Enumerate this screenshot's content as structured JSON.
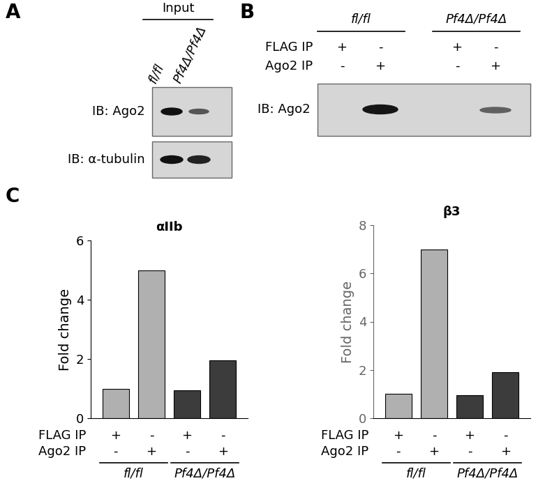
{
  "panels": {
    "A": {
      "label": "A",
      "header": "Input",
      "lanes": [
        "fl/fl",
        "Pf4Δ/Pf4Δ"
      ],
      "blots": [
        "IB: Ago2",
        "IB: α-tubulin"
      ]
    },
    "B": {
      "label": "B",
      "groups": [
        "fl/fl",
        "Pf4Δ/Pf4Δ"
      ],
      "rows": [
        {
          "label": "FLAG IP",
          "marks": [
            "+",
            "-",
            "+",
            "-"
          ]
        },
        {
          "label": "Ago2 IP",
          "marks": [
            "-",
            "+",
            "-",
            "+"
          ]
        }
      ],
      "blot": "IB: Ago2"
    },
    "C": {
      "label": "C",
      "groups": [
        "fl/fl",
        "Pf4Δ/Pf4Δ"
      ],
      "rows": [
        {
          "label": "FLAG IP",
          "marks": [
            "+",
            "-",
            "+",
            "-"
          ]
        },
        {
          "label": "Ago2 IP",
          "marks": [
            "-",
            "+",
            "-",
            "+"
          ]
        }
      ]
    }
  },
  "chart_data": [
    {
      "type": "bar",
      "title": "αIIb",
      "ylabel": "Fold change",
      "categories": [
        null,
        null,
        null,
        null
      ],
      "values": [
        1,
        5,
        0.95,
        1.95
      ],
      "colors": [
        "#b0b0b0",
        "#b0b0b0",
        "#3c3c3c",
        "#3c3c3c"
      ],
      "ylim": [
        0,
        6
      ],
      "yticks": [
        0,
        2,
        4,
        6
      ],
      "tick_labels": "y"
    },
    {
      "type": "bar",
      "title": "β3",
      "ylabel": "Fold change",
      "categories": [
        null,
        null,
        null,
        null
      ],
      "values": [
        1,
        7,
        0.95,
        1.9
      ],
      "colors": [
        "#b0b0b0",
        "#b0b0b0",
        "#3c3c3c",
        "#3c3c3c"
      ],
      "ylim": [
        0,
        8
      ],
      "yticks": [
        0,
        2,
        4,
        6,
        8
      ],
      "tick_labels": "y"
    }
  ]
}
